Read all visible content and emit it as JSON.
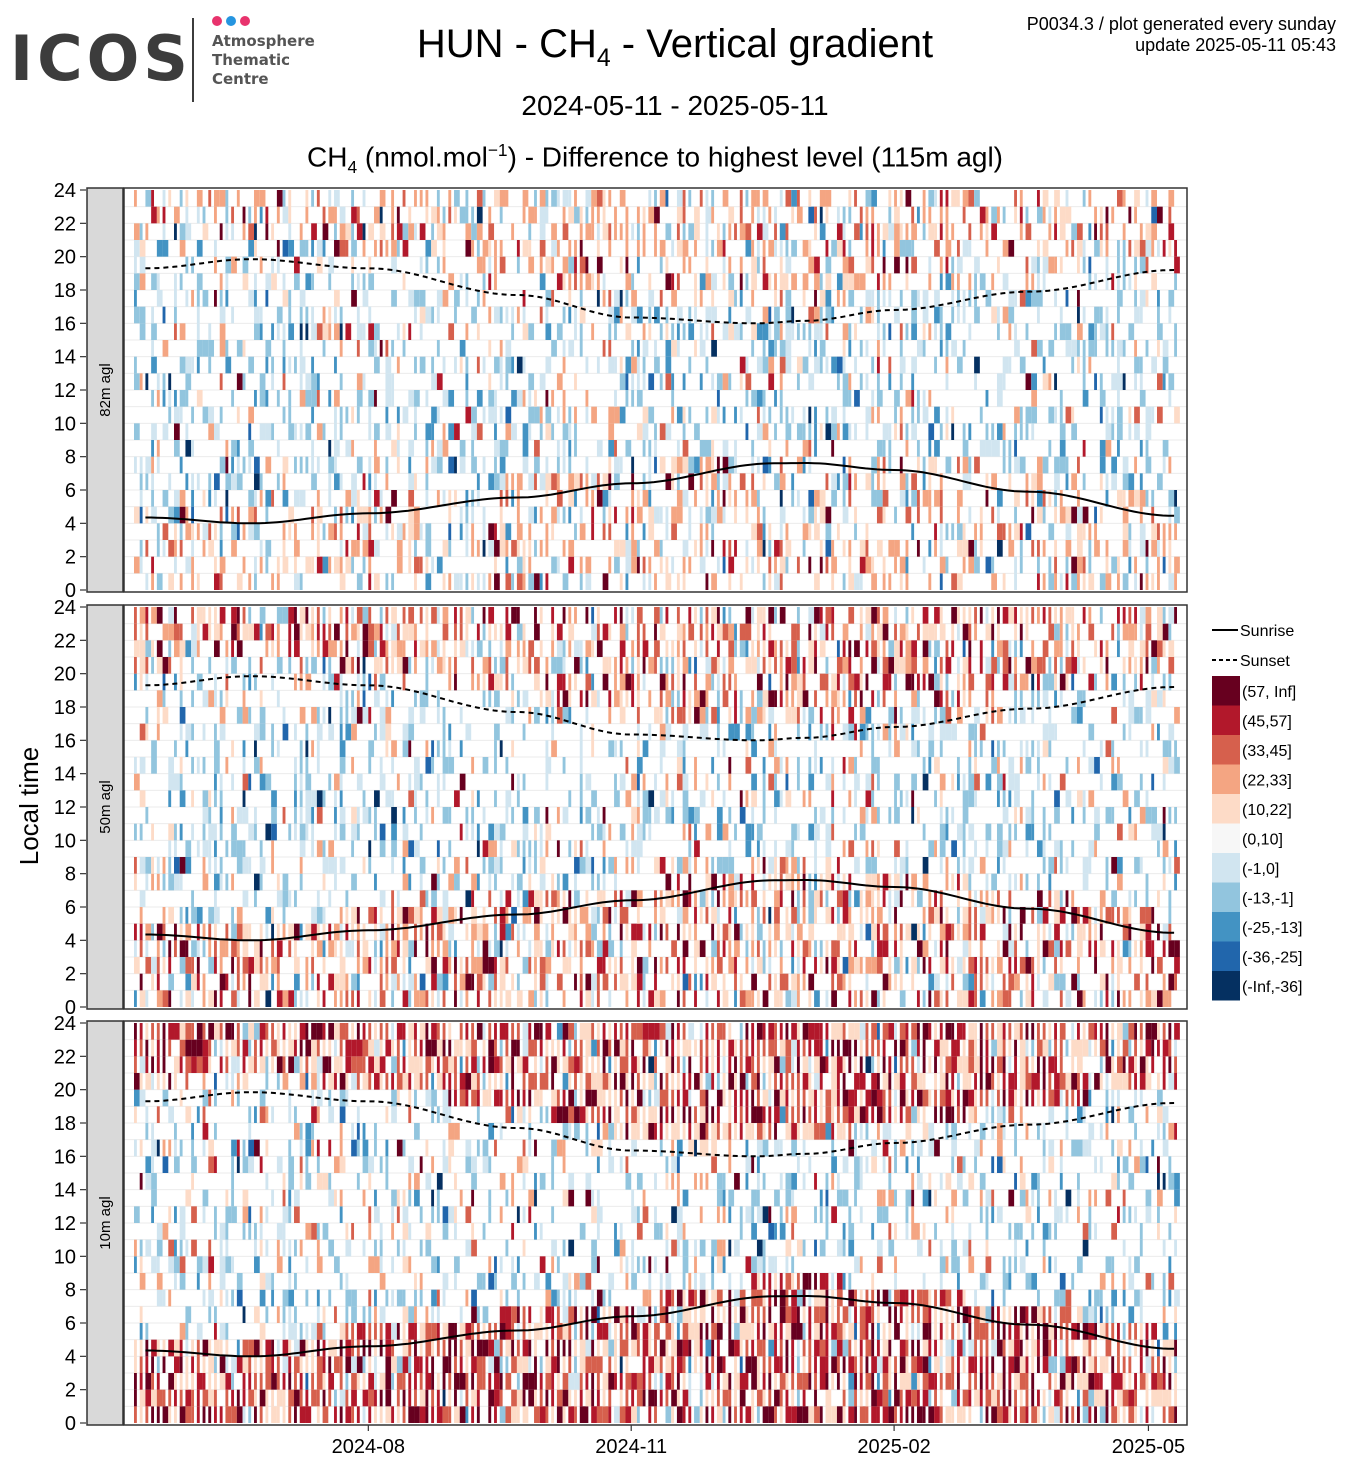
{
  "logo": {
    "word": "ICOS",
    "lines": [
      "Atmosphere",
      "Thematic",
      "Centre"
    ],
    "dot_colors": [
      "#e8336d",
      "#2595e0",
      "#e8336d"
    ]
  },
  "header": {
    "title_pre": "HUN - CH",
    "title_sub": "4",
    "title_post": " - Vertical gradient",
    "date_range": "2024-05-11 - 2025-05-11",
    "subtitle_pre": "CH",
    "subtitle_sub": "4",
    "subtitle_mid": " (nmol.mol",
    "subtitle_sup": "−1",
    "subtitle_post": ") - Difference to highest level (115m agl)",
    "meta_line1": "P0034.3 / plot generated every sunday",
    "meta_line2": "update  2025-05-11 05:43"
  },
  "chart_data": {
    "type": "heatmap",
    "ylabel": "Local time",
    "xlim": [
      "2024-05-11",
      "2025-05-11"
    ],
    "ylim": [
      0,
      24
    ],
    "y_ticks": [
      0,
      2,
      4,
      6,
      8,
      10,
      12,
      14,
      16,
      18,
      20,
      22,
      24
    ],
    "x_ticks": [
      {
        "date": "2024-08-01",
        "label": "2024-08"
      },
      {
        "date": "2024-11-01",
        "label": "2024-11"
      },
      {
        "date": "2025-02-01",
        "label": "2025-02"
      },
      {
        "date": "2025-05-01",
        "label": "2025-05"
      }
    ],
    "panels": [
      {
        "label": "82m agl",
        "intensity": 0.22
      },
      {
        "label": "50m agl",
        "intensity": 0.55
      },
      {
        "label": "10m agl",
        "intensity": 1.0
      }
    ],
    "legend": {
      "lines": [
        {
          "label": "Sunrise",
          "style": "solid"
        },
        {
          "label": "Sunset",
          "style": "dashed"
        }
      ],
      "bins": [
        {
          "label": "(57, Inf]",
          "color": "#67001f"
        },
        {
          "label": "(45,57]",
          "color": "#b2182b"
        },
        {
          "label": "(33,45]",
          "color": "#d6604d"
        },
        {
          "label": "(22,33]",
          "color": "#f4a582"
        },
        {
          "label": "(10,22]",
          "color": "#fddbc7"
        },
        {
          "label": "(0,10]",
          "color": "#f7f7f7"
        },
        {
          "label": "(-1,0]",
          "color": "#d1e5f0"
        },
        {
          "label": "(-13,-1]",
          "color": "#92c5de"
        },
        {
          "label": "(-25,-13]",
          "color": "#4393c3"
        },
        {
          "label": "(-36,-25]",
          "color": "#2166ac"
        },
        {
          "label": "(-Inf,-36]",
          "color": "#053061"
        }
      ]
    },
    "sunrise": [
      {
        "date": "2024-05-15",
        "hour": 4.35
      },
      {
        "date": "2024-06-21",
        "hour": 4.0
      },
      {
        "date": "2024-08-01",
        "hour": 4.6
      },
      {
        "date": "2024-09-22",
        "hour": 5.55
      },
      {
        "date": "2024-11-01",
        "hour": 6.4
      },
      {
        "date": "2024-12-21",
        "hour": 7.6
      },
      {
        "date": "2025-01-01",
        "hour": 7.62
      },
      {
        "date": "2025-02-01",
        "hour": 7.2
      },
      {
        "date": "2025-03-20",
        "hour": 5.9
      },
      {
        "date": "2025-05-10",
        "hour": 4.45
      }
    ],
    "sunset": [
      {
        "date": "2024-05-15",
        "hour": 19.3
      },
      {
        "date": "2024-06-21",
        "hour": 19.85
      },
      {
        "date": "2024-08-01",
        "hour": 19.3
      },
      {
        "date": "2024-09-22",
        "hour": 17.7
      },
      {
        "date": "2024-11-01",
        "hour": 16.35
      },
      {
        "date": "2024-12-15",
        "hour": 16.0
      },
      {
        "date": "2025-01-01",
        "hour": 16.15
      },
      {
        "date": "2025-02-01",
        "hour": 16.8
      },
      {
        "date": "2025-03-20",
        "hour": 17.9
      },
      {
        "date": "2025-05-10",
        "hour": 19.2
      }
    ]
  }
}
